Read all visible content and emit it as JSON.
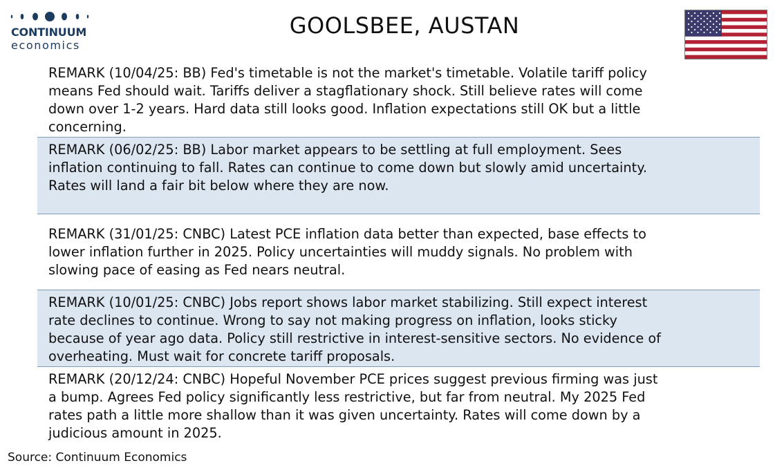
{
  "header": {
    "logo_brand": "CONTINUUM",
    "logo_sub": "economics",
    "title": "GOOLSBEE, AUSTAN",
    "flag_icon": "us-flag-icon"
  },
  "remarks": [
    {
      "text": "REMARK (10/04/25: BB) Fed's timetable is not the market's timetable. Volatile tariff policy\nmeans Fed should wait. Tariffs deliver a stagflationary shock. Still believe rates will come\ndown over 1-2 years. Hard data still looks good. Inflation expectations still OK but a little\nconcerning."
    },
    {
      "text": "REMARK (06/02/25: BB) Labor market appears to be settling at full employment. Sees\ninflation continuing to fall. Rates can continue to come down but slowly amid uncertainty.\nRates will land a fair bit below where they are now."
    },
    {
      "text": "REMARK (31/01/25: CNBC) Latest PCE inflation data better than expected, base effects to\nlower inflation further in 2025. Policy uncertainties will muddy signals. No problem with\nslowing pace of easing as Fed nears neutral."
    },
    {
      "text": "REMARK (10/01/25: CNBC) Jobs report shows labor market stabilizing. Still expect interest\nrate declines to continue. Wrong to say not making progress on inflation, looks sticky\nbecause of year ago data. Policy still restrictive in interest-sensitive sectors. No evidence of\noverheating. Must wait for concrete tariff proposals."
    },
    {
      "text": "REMARK (20/12/24: CNBC) Hopeful November PCE prices suggest previous firming was just\na bump. Agrees Fed policy significantly less restrictive, but far from neutral. My 2025 Fed\nrates path a little more shallow than it was given uncertainty. Rates will come down by a\njudicious amount in 2025."
    }
  ],
  "footer": {
    "source": "Source: Continuum Economics"
  },
  "colors": {
    "shaded_row": "#dce6f1",
    "divider": "#7f9bb8",
    "logo_blue": "#1b3b5f"
  }
}
